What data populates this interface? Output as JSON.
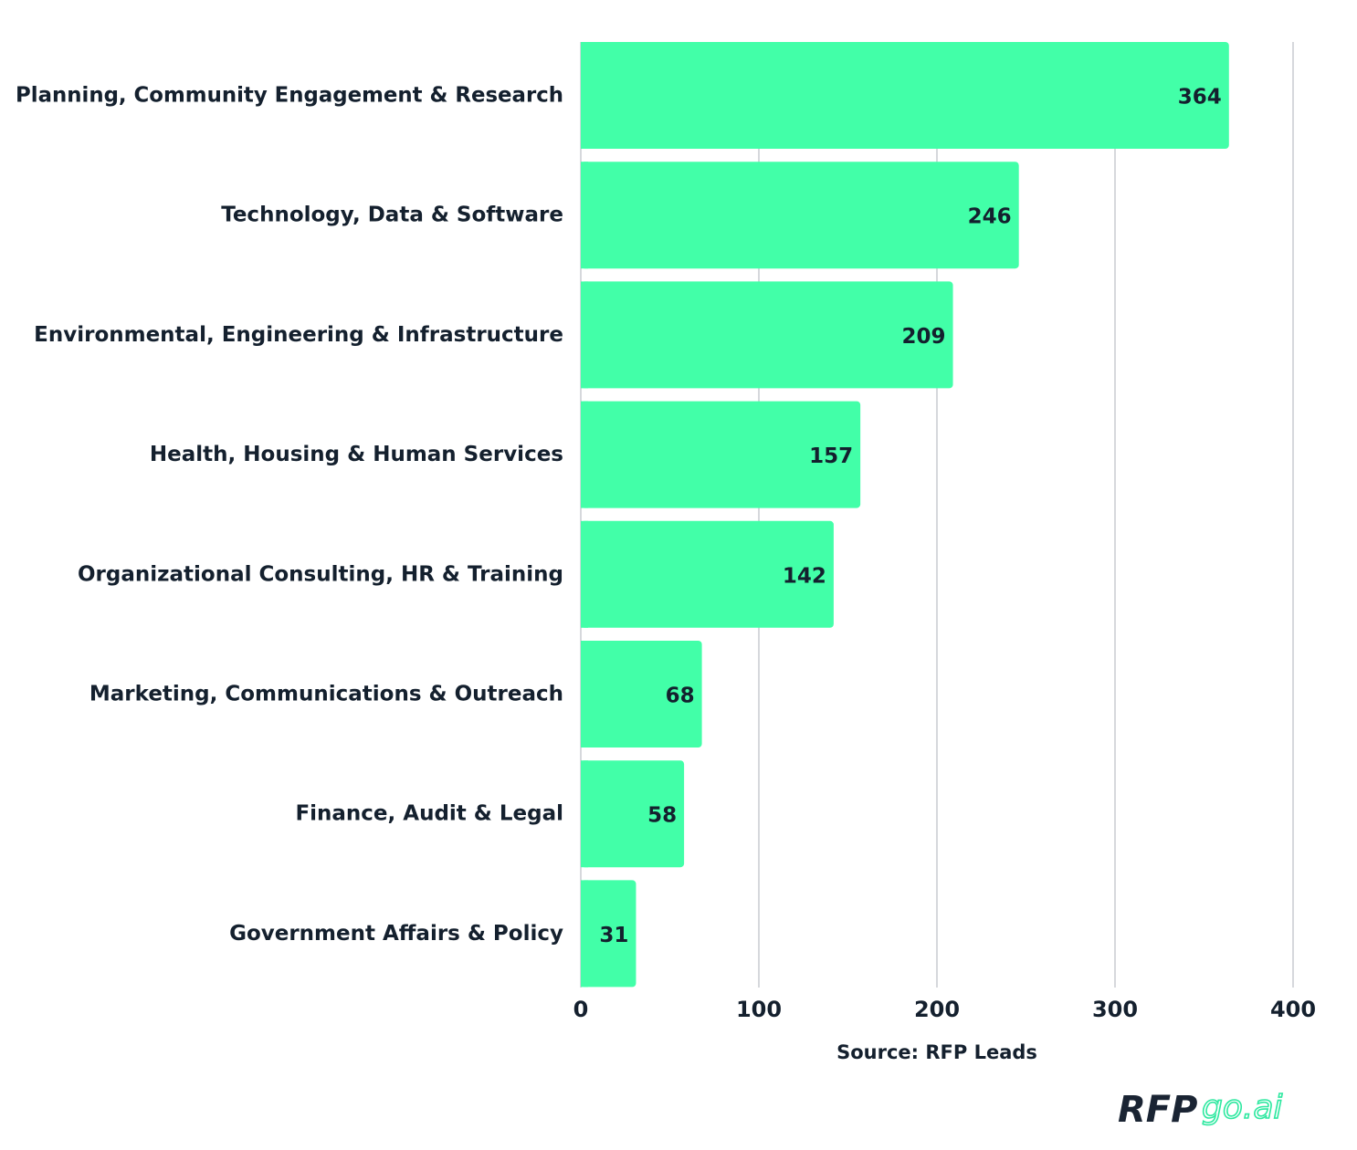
{
  "chart_data": {
    "type": "bar",
    "orientation": "horizontal",
    "categories": [
      "Planning, Community Engagement & Research",
      "Technology, Data & Software",
      "Environmental, Engineering & Infrastructure",
      "Health, Housing & Human Services",
      "Organizational Consulting, HR & Training",
      "Marketing, Communications & Outreach",
      "Finance, Audit & Legal",
      "Government Affairs & Policy"
    ],
    "values": [
      364,
      246,
      209,
      157,
      142,
      68,
      58,
      31
    ],
    "xlim": [
      0,
      400
    ],
    "xticks": [
      "0",
      "100",
      "200",
      "300",
      "400"
    ],
    "grid": true,
    "bar_color": "#42ffa8",
    "text_color": "#14202e",
    "source": "Source: RFP Leads"
  },
  "logo": {
    "text_main": "RFP",
    "text_accent": "go.ai",
    "accent_color": "#2ee8a0"
  }
}
